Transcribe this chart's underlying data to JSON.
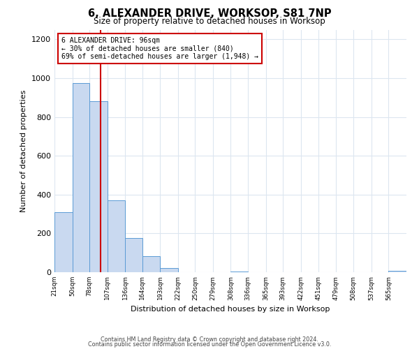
{
  "title": "6, ALEXANDER DRIVE, WORKSOP, S81 7NP",
  "subtitle": "Size of property relative to detached houses in Worksop",
  "xlabel": "Distribution of detached houses by size in Worksop",
  "ylabel": "Number of detached properties",
  "bar_edges": [
    21,
    50,
    78,
    107,
    136,
    164,
    193,
    222,
    250,
    279,
    308,
    336,
    365,
    393,
    422,
    451,
    479,
    508,
    537,
    565,
    594
  ],
  "bar_heights": [
    310,
    975,
    880,
    370,
    175,
    83,
    22,
    0,
    0,
    0,
    5,
    0,
    0,
    0,
    0,
    0,
    0,
    0,
    0,
    8
  ],
  "bar_color": "#c9d9f0",
  "bar_edge_color": "#5b9bd5",
  "property_value": 96,
  "vline_color": "#cc0000",
  "annotation_line1": "6 ALEXANDER DRIVE: 96sqm",
  "annotation_line2": "← 30% of detached houses are smaller (840)",
  "annotation_line3": "69% of semi-detached houses are larger (1,948) →",
  "annotation_box_color": "#ffffff",
  "annotation_box_edge_color": "#cc0000",
  "ylim": [
    0,
    1250
  ],
  "yticks": [
    0,
    200,
    400,
    600,
    800,
    1000,
    1200
  ],
  "footer_line1": "Contains HM Land Registry data © Crown copyright and database right 2024.",
  "footer_line2": "Contains public sector information licensed under the Open Government Licence v3.0.",
  "background_color": "#ffffff",
  "grid_color": "#dce6f0"
}
